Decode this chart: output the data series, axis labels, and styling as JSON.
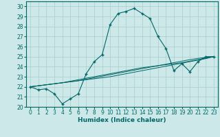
{
  "xlabel": "Humidex (Indice chaleur)",
  "background_color": "#cce8e8",
  "grid_color": "#aacccc",
  "line_color": "#006666",
  "xlim": [
    -0.5,
    23.5
  ],
  "ylim": [
    20,
    30.5
  ],
  "yticks": [
    20,
    21,
    22,
    23,
    24,
    25,
    26,
    27,
    28,
    29,
    30
  ],
  "xticks": [
    0,
    1,
    2,
    3,
    4,
    5,
    6,
    7,
    8,
    9,
    10,
    11,
    12,
    13,
    14,
    15,
    16,
    17,
    18,
    19,
    20,
    21,
    22,
    23
  ],
  "main_series": [
    22,
    21.7,
    21.8,
    21.3,
    20.3,
    20.8,
    21.3,
    23.3,
    24.5,
    25.2,
    28.2,
    29.3,
    29.5,
    29.8,
    29.3,
    28.8,
    27.0,
    25.8,
    23.6,
    24.3,
    23.5,
    24.5,
    25.0,
    25.0
  ],
  "linear_series": [
    [
      22.0,
      22.1,
      22.2,
      22.3,
      22.4,
      22.5,
      22.6,
      22.7,
      22.8,
      22.9,
      23.0,
      23.15,
      23.3,
      23.45,
      23.6,
      23.75,
      23.9,
      24.05,
      24.2,
      24.35,
      24.5,
      24.65,
      24.8,
      25.0
    ],
    [
      22.0,
      22.1,
      22.2,
      22.3,
      22.4,
      22.5,
      22.6,
      22.75,
      22.9,
      23.05,
      23.2,
      23.35,
      23.5,
      23.65,
      23.8,
      23.95,
      24.1,
      24.25,
      24.4,
      24.55,
      24.7,
      24.82,
      24.92,
      25.0
    ],
    [
      22.0,
      22.1,
      22.2,
      22.3,
      22.4,
      22.55,
      22.7,
      22.85,
      23.0,
      23.15,
      23.3,
      23.45,
      23.6,
      23.75,
      23.9,
      24.0,
      24.1,
      24.2,
      24.3,
      24.4,
      24.55,
      24.7,
      24.85,
      25.0
    ]
  ]
}
